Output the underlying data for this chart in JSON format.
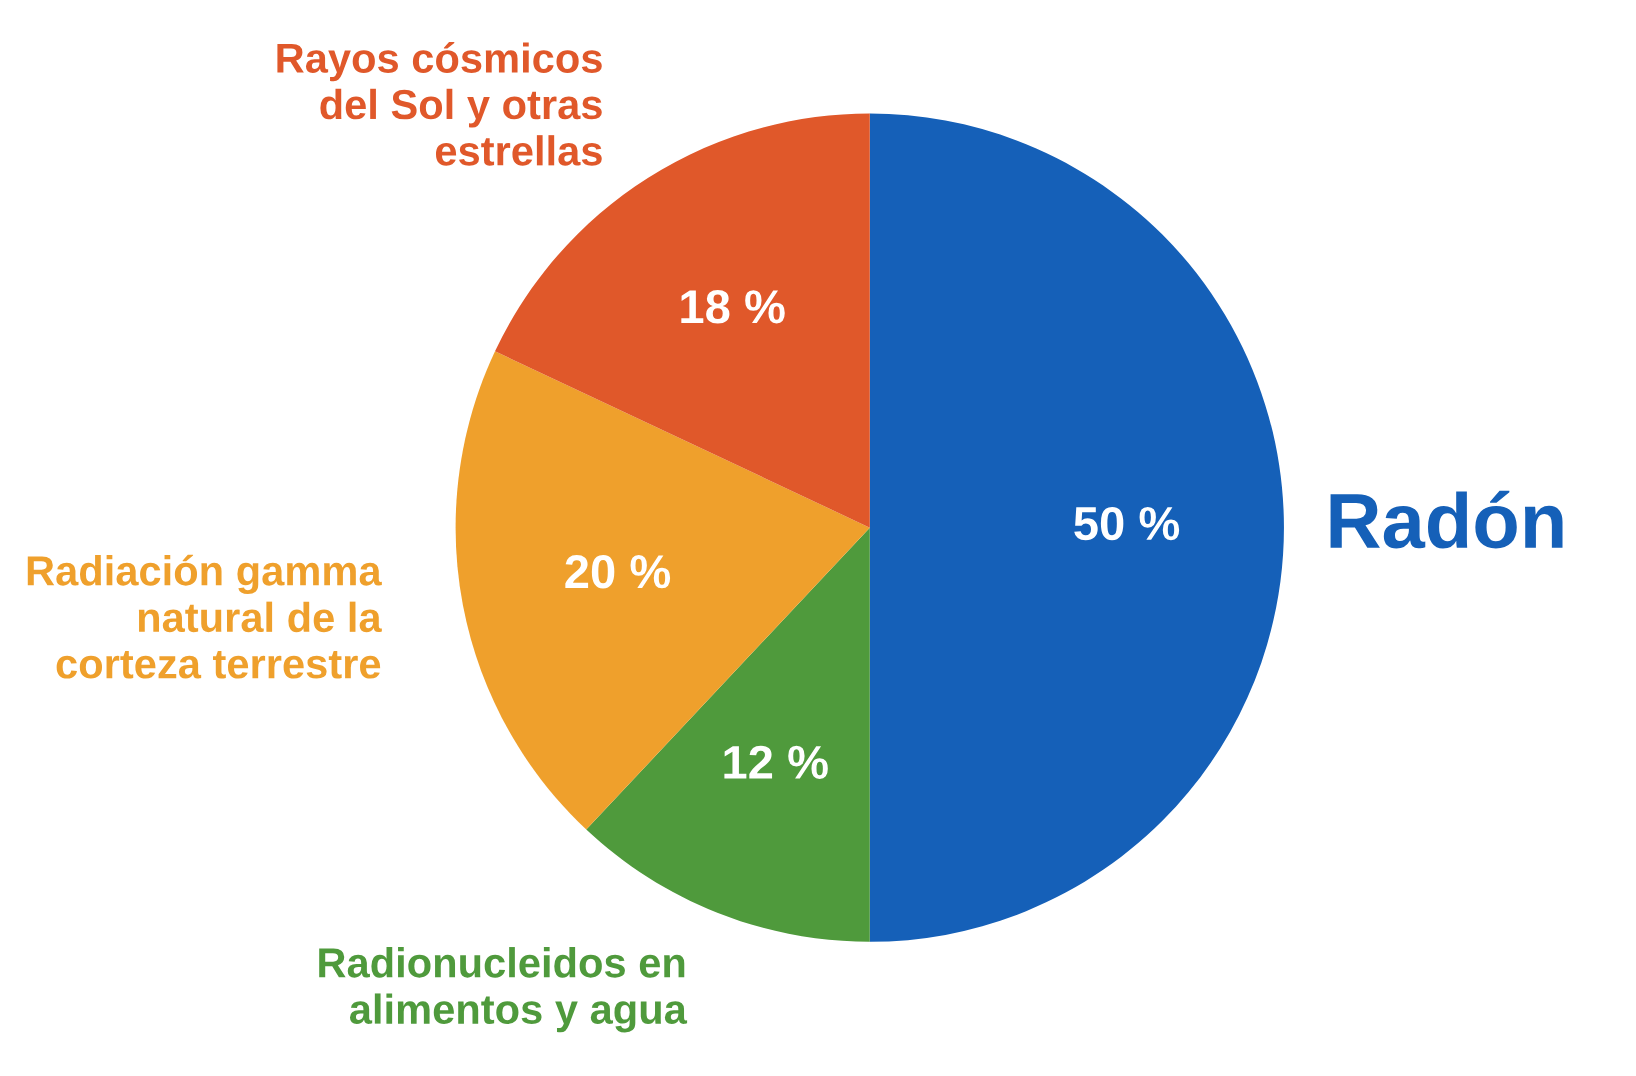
{
  "chart_data": {
    "type": "pie",
    "categories": [
      "Radón",
      "Radionucleidos en alimentos y agua",
      "Radiación gamma natural de la corteza terrestre",
      "Rayos cósmicos del Sol y otras estrellas"
    ],
    "values": [
      50,
      12,
      20,
      18
    ],
    "colors": [
      "#1560b8",
      "#4f9a3c",
      "#efa02c",
      "#e0582a"
    ],
    "value_labels": [
      "50 %",
      "12 %",
      "20 %",
      "18 %"
    ]
  }
}
